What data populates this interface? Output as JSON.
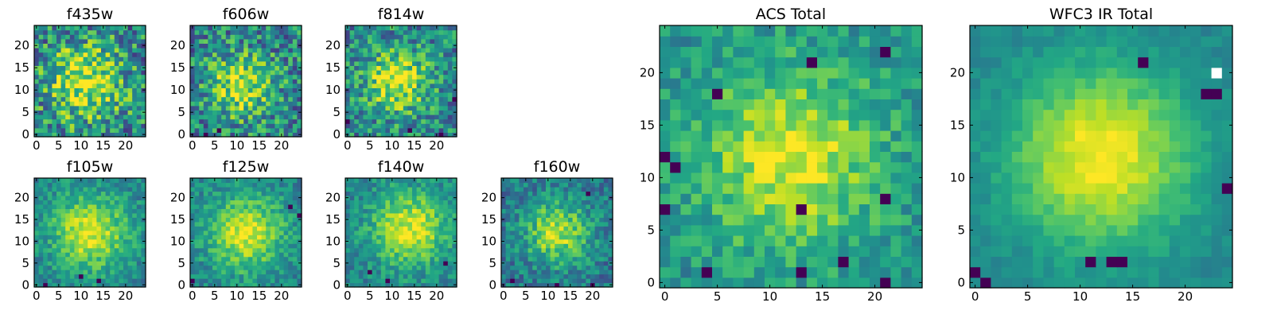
{
  "chart_data": {
    "type": "heatmap",
    "colormap": "viridis",
    "grid_size": [
      25,
      25
    ],
    "panels": [
      {
        "id": "f435w",
        "title": "f435w",
        "xlim": [
          0,
          24
        ],
        "ylim": [
          0,
          24
        ],
        "xticks": [
          "0",
          "5",
          "10",
          "15",
          "20"
        ],
        "yticks": [
          "0",
          "5",
          "10",
          "15",
          "20"
        ],
        "center": [
          11,
          12
        ],
        "sigma": 6,
        "peak": 0.5,
        "noise": 0.55,
        "base": 0.45,
        "seed": 11,
        "dark_pixels": []
      },
      {
        "id": "f606w",
        "title": "f606w",
        "xlim": [
          0,
          24
        ],
        "ylim": [
          0,
          24
        ],
        "xticks": [
          "0",
          "5",
          "10",
          "15",
          "20"
        ],
        "yticks": [
          "0",
          "5",
          "10",
          "15",
          "20"
        ],
        "center": [
          11,
          11
        ],
        "sigma": 5,
        "peak": 0.45,
        "noise": 0.5,
        "base": 0.45,
        "seed": 23,
        "dark_pixels": [
          [
            3,
            0
          ],
          [
            6,
            1
          ]
        ]
      },
      {
        "id": "f814w",
        "title": "f814w",
        "xlim": [
          0,
          24
        ],
        "ylim": [
          0,
          24
        ],
        "xticks": [
          "0",
          "5",
          "10",
          "15",
          "20"
        ],
        "yticks": [
          "0",
          "5",
          "10",
          "15",
          "20"
        ],
        "center": [
          11,
          12
        ],
        "sigma": 5,
        "peak": 0.5,
        "noise": 0.45,
        "base": 0.45,
        "seed": 37,
        "dark_pixels": [
          [
            14,
            1
          ],
          [
            21,
            0
          ],
          [
            24,
            8
          ],
          [
            0,
            3
          ]
        ]
      },
      {
        "id": "f105w",
        "title": "f105w",
        "xlim": [
          0,
          24
        ],
        "ylim": [
          0,
          24
        ],
        "xticks": [
          "0",
          "5",
          "10",
          "15",
          "20"
        ],
        "yticks": [
          "0",
          "5",
          "10",
          "15",
          "20"
        ],
        "center": [
          12,
          12
        ],
        "sigma": 6,
        "peak": 0.5,
        "noise": 0.25,
        "base": 0.45,
        "seed": 41,
        "dark_pixels": [
          [
            10,
            2
          ],
          [
            14,
            1
          ],
          [
            2,
            0
          ]
        ]
      },
      {
        "id": "f125w",
        "title": "f125w",
        "xlim": [
          0,
          24
        ],
        "ylim": [
          0,
          24
        ],
        "xticks": [
          "0",
          "5",
          "10",
          "15",
          "20"
        ],
        "yticks": [
          "0",
          "5",
          "10",
          "15",
          "20"
        ],
        "center": [
          12,
          12
        ],
        "sigma": 6,
        "peak": 0.5,
        "noise": 0.25,
        "base": 0.45,
        "seed": 53,
        "dark_pixels": [
          [
            22,
            18
          ],
          [
            24,
            16
          ],
          [
            0,
            1
          ]
        ]
      },
      {
        "id": "f140w",
        "title": "f140w",
        "xlim": [
          0,
          24
        ],
        "ylim": [
          0,
          24
        ],
        "xticks": [
          "0",
          "5",
          "10",
          "15",
          "20"
        ],
        "yticks": [
          "0",
          "5",
          "10",
          "15",
          "20"
        ],
        "center": [
          14,
          13
        ],
        "sigma": 6,
        "peak": 0.5,
        "noise": 0.25,
        "base": 0.45,
        "seed": 67,
        "dark_pixels": [
          [
            5,
            3
          ],
          [
            22,
            5
          ],
          [
            9,
            1
          ]
        ]
      },
      {
        "id": "f160w",
        "title": "f160w",
        "xlim": [
          0,
          24
        ],
        "ylim": [
          0,
          24
        ],
        "xticks": [
          "0",
          "5",
          "10",
          "15",
          "20"
        ],
        "yticks": [
          "0",
          "5",
          "10",
          "15",
          "20"
        ],
        "center": [
          12,
          12
        ],
        "sigma": 5,
        "peak": 0.5,
        "noise": 0.3,
        "base": 0.4,
        "seed": 79,
        "dark_pixels": [
          [
            19,
            21
          ],
          [
            2,
            1
          ],
          [
            20,
            0
          ],
          [
            12,
            0
          ]
        ]
      },
      {
        "id": "acs_total",
        "title": "ACS Total",
        "xlim": [
          0,
          24
        ],
        "ylim": [
          0,
          24
        ],
        "xticks": [
          "0",
          "5",
          "10",
          "15",
          "20"
        ],
        "yticks": [
          "0",
          "5",
          "10",
          "15",
          "20"
        ],
        "center": [
          12,
          12
        ],
        "sigma": 6,
        "peak": 0.45,
        "noise": 0.25,
        "base": 0.5,
        "seed": 97,
        "dark_pixels": [
          [
            14,
            21
          ],
          [
            21,
            22
          ],
          [
            5,
            18
          ],
          [
            0,
            12
          ],
          [
            21,
            8
          ],
          [
            13,
            7
          ],
          [
            17,
            2
          ],
          [
            0,
            7
          ],
          [
            4,
            1
          ],
          [
            13,
            1
          ],
          [
            21,
            0
          ],
          [
            1,
            11
          ]
        ]
      },
      {
        "id": "wfc3_total",
        "title": "WFC3 IR Total",
        "xlim": [
          0,
          24
        ],
        "ylim": [
          0,
          24
        ],
        "xticks": [
          "0",
          "5",
          "10",
          "15",
          "20"
        ],
        "yticks": [
          "0",
          "5",
          "10",
          "15",
          "20"
        ],
        "center": [
          12,
          12
        ],
        "sigma": 6,
        "peak": 0.55,
        "noise": 0.1,
        "base": 0.45,
        "seed": 113,
        "dark_pixels": [
          [
            16,
            21
          ],
          [
            22,
            18
          ],
          [
            23,
            18
          ],
          [
            11,
            2
          ],
          [
            13,
            2
          ],
          [
            14,
            2
          ],
          [
            0,
            1
          ],
          [
            1,
            0
          ],
          [
            24,
            9
          ]
        ],
        "white_pixels": [
          [
            23,
            20
          ]
        ]
      }
    ]
  }
}
